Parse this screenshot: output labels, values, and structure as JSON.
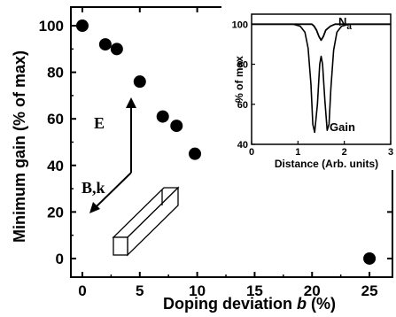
{
  "chart_data": [
    {
      "type": "scatter",
      "xlabel_prefix": "Doping deviation ",
      "xlabel_var": "b",
      "xlabel_suffix": " (%)",
      "ylabel": "Minimum gain (% of max)",
      "xlim": [
        -1,
        27
      ],
      "ylim": [
        -8,
        108
      ],
      "xticks": [
        0,
        5,
        10,
        15,
        20,
        25
      ],
      "yticks": [
        0,
        20,
        40,
        60,
        80,
        100
      ],
      "grid": false,
      "series": [
        {
          "color": "#000000",
          "points": [
            {
              "x": 0,
              "y": 100
            },
            {
              "x": 2,
              "y": 92
            },
            {
              "x": 3,
              "y": 90
            },
            {
              "x": 5,
              "y": 76
            },
            {
              "x": 7,
              "y": 61
            },
            {
              "x": 8.2,
              "y": 57
            },
            {
              "x": 9.8,
              "y": 45
            },
            {
              "x": 25,
              "y": 0
            }
          ]
        }
      ],
      "annotations": {
        "e_label": "E",
        "bk_label": "B,k"
      }
    },
    {
      "type": "line",
      "xlabel": "Distance (Arb. units)",
      "ylabel": "% of max",
      "xlim": [
        0,
        3
      ],
      "ylim": [
        40,
        105
      ],
      "xticks": [
        0,
        1,
        2,
        3
      ],
      "yticks": [
        40,
        60,
        80,
        100
      ],
      "series": [
        {
          "label_main": "N",
          "label_sub": "a",
          "color": "#000000",
          "x": [
            0,
            1.2,
            1.3,
            1.35,
            1.4,
            1.45,
            1.5,
            1.55,
            1.6,
            1.7,
            1.8,
            3
          ],
          "y": [
            100,
            100,
            100,
            99,
            97,
            94,
            92,
            94,
            97,
            99,
            100,
            100
          ]
        },
        {
          "name": "Gain",
          "color": "#000000",
          "x": [
            0,
            0.9,
            1.05,
            1.15,
            1.22,
            1.28,
            1.32,
            1.36,
            1.42,
            1.47,
            1.5,
            1.53,
            1.58,
            1.63,
            1.67,
            1.71,
            1.77,
            1.84,
            1.94,
            2.1,
            3
          ],
          "y": [
            100,
            100,
            99,
            96,
            88,
            70,
            50,
            46,
            60,
            80,
            84,
            80,
            62,
            47,
            50,
            68,
            87,
            96,
            99,
            100,
            100
          ]
        }
      ]
    }
  ]
}
